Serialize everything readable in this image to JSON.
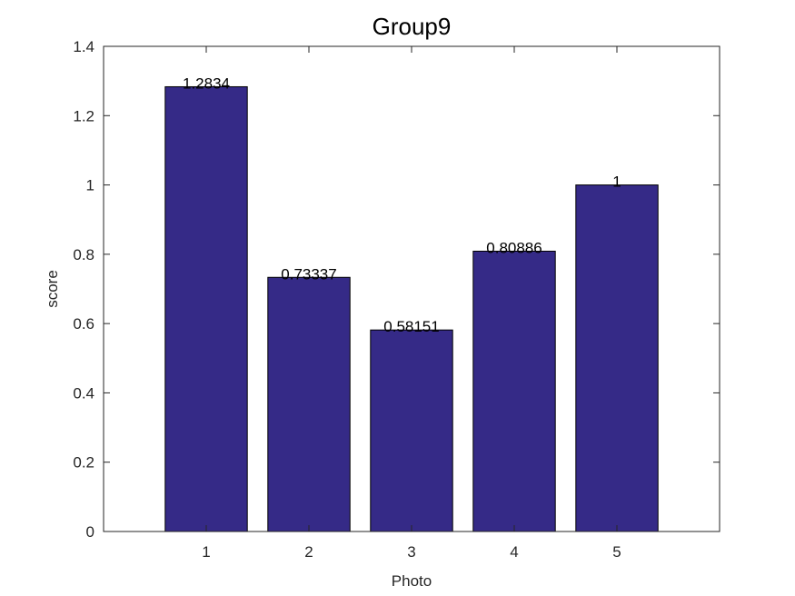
{
  "chart_data": {
    "type": "bar",
    "title": "Group9",
    "x_label": "Photo",
    "y_label": "score",
    "x": [
      1,
      2,
      3,
      4,
      5
    ],
    "values": [
      1.2834,
      0.73337,
      0.58151,
      0.80886,
      1
    ],
    "color": "#352a87",
    "xlim": [
      0,
      6
    ],
    "xticks": [
      1,
      2,
      3,
      4,
      5
    ],
    "ylim": [
      0,
      1.4
    ],
    "yticks": [
      0,
      0.2,
      0.4,
      0.6,
      0.8,
      1,
      1.2,
      1.4
    ],
    "grid": false
  }
}
